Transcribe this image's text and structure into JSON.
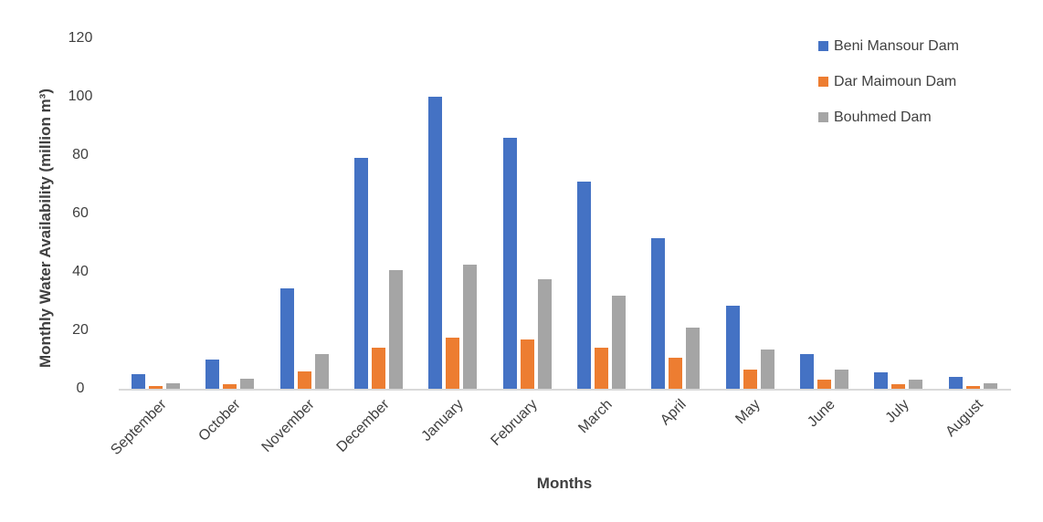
{
  "chart_data": {
    "type": "bar",
    "title": "",
    "xlabel": "Months",
    "ylabel": "Monthly Water Availability  (million m³)",
    "categories": [
      "September",
      "October",
      "November",
      "December",
      "January",
      "February",
      "March",
      "April",
      "May",
      "June",
      "July",
      "August"
    ],
    "series": [
      {
        "name": "Beni Mansour Dam",
        "color": "#4472C4",
        "values": [
          5,
          10,
          34.5,
          79,
          100,
          86,
          71,
          51.5,
          28.5,
          12,
          5.5,
          4
        ]
      },
      {
        "name": "Dar Maimoun Dam",
        "color": "#ED7D31",
        "values": [
          1,
          1.5,
          6,
          14,
          17.5,
          17,
          14,
          10.5,
          6.5,
          3,
          1.5,
          1
        ]
      },
      {
        "name": "Bouhmed Dam",
        "color": "#A5A5A5",
        "values": [
          2,
          3.5,
          12,
          40.5,
          42.5,
          37.5,
          32,
          21,
          13.5,
          6.5,
          3,
          2
        ]
      }
    ],
    "yticks": [
      0,
      20,
      40,
      60,
      80,
      100,
      120
    ],
    "ylim": [
      0,
      120
    ],
    "grid": false,
    "legend_position": "top-right",
    "axis_line_color": "#D9D9D9",
    "text_color": "#404040"
  }
}
